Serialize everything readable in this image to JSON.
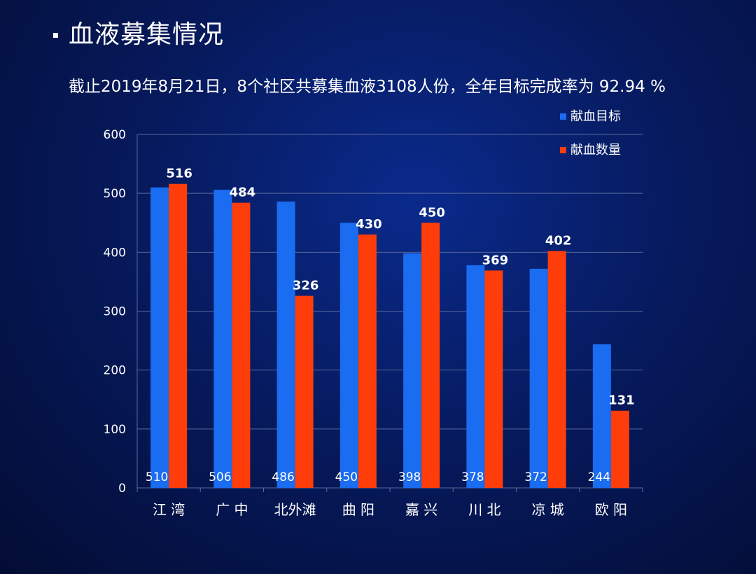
{
  "slide": {
    "title": "血液募集情况",
    "subtitle": "截止2019年8月21日，8个社区共募集血液3108人份，全年目标完成率为 92.94 %"
  },
  "colors": {
    "target": "#1a6cf0",
    "actual": "#ff3d0a",
    "grid": "#5a6b9c",
    "text": "#ffffff"
  },
  "chart_data": {
    "type": "bar",
    "categories": [
      "江 湾",
      "广 中",
      "北外滩",
      "曲 阳",
      "嘉 兴",
      "川 北",
      "凉 城",
      "欧 阳"
    ],
    "series": [
      {
        "name": "献血目标",
        "values": [
          510,
          506,
          486,
          450,
          398,
          378,
          372,
          244
        ],
        "label_position": "bottom",
        "label_bold": false
      },
      {
        "name": "献血数量",
        "values": [
          516,
          484,
          326,
          430,
          450,
          369,
          402,
          131
        ],
        "label_position": "top",
        "label_bold": true
      }
    ],
    "ylim": [
      0,
      600
    ],
    "yticks": [
      0,
      100,
      200,
      300,
      400,
      500,
      600
    ],
    "grid": true,
    "legend": "top-right"
  }
}
